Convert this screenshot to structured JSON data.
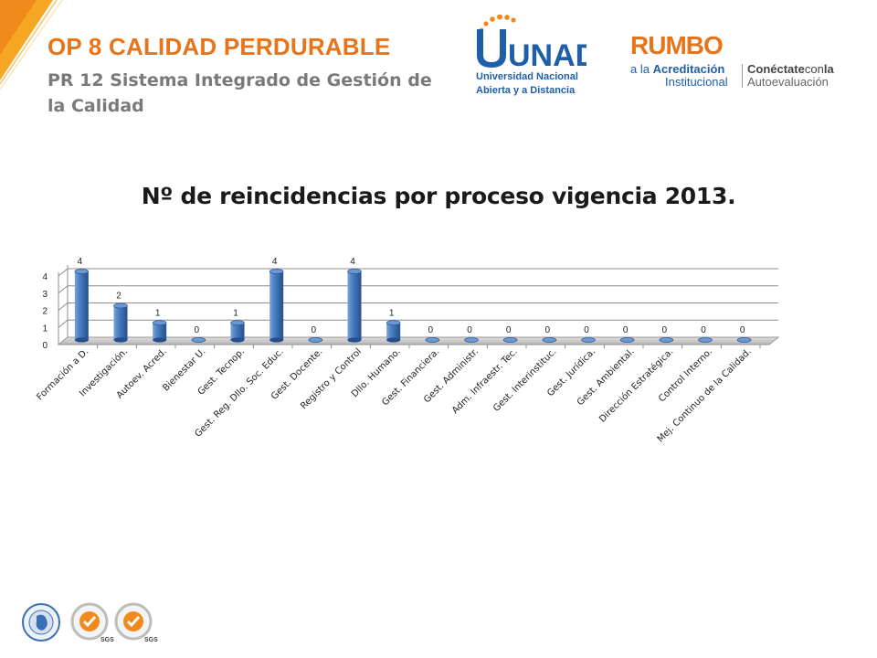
{
  "header": {
    "title": "OP 8 CALIDAD PERDURABLE",
    "subtitle": "PR 12 Sistema Integrado de Gestión de la Calidad"
  },
  "logos": {
    "unad": {
      "wordmark": "UNAD",
      "line1": "Universidad Nacional",
      "line2": "Abierta y a Distancia"
    },
    "rumbo": {
      "word": "RUMBO",
      "line1_pre": "a la ",
      "line1_bold": "Acreditación",
      "line2": "Institucional",
      "right1_bold": "Conéctate",
      "right1_mid": "con",
      "right1_end": "la",
      "right2": "Autoevaluación"
    },
    "footer": [
      "SGS",
      "SGS"
    ]
  },
  "colors": {
    "accent_orange": "#e8741a",
    "bar_blue": "#3b6fb6",
    "text_gray": "#7a7a7a"
  },
  "chart_data": {
    "type": "bar",
    "title": "Nº de reincidencias por proceso vigencia 2013.",
    "categories": [
      "Formación a D.",
      "Investigación.",
      "Autoev. Acred.",
      "Bienestar U.",
      "Gest. Tecnop.",
      "Gest. Reg. Dllo. Soc. Educ.",
      "Gest. Docente.",
      "Registro y Control",
      "Dllo. Humano.",
      "Gest. Financiera.",
      "Gest. Administr.",
      "Adm. Infraestr. Tec.",
      "Gest. Interinstituc.",
      "Gest. Jurídica.",
      "Gest. Ambiental.",
      "Dirección Estratégica.",
      "Control Interno.",
      "Mej. Continuo de la Calidad."
    ],
    "values": [
      4,
      2,
      1,
      0,
      1,
      4,
      0,
      4,
      1,
      0,
      0,
      0,
      0,
      0,
      0,
      0,
      0,
      0
    ],
    "data_labels": [
      "4",
      "2",
      "1",
      "0",
      "1",
      "4",
      "0",
      "4",
      "1",
      "0",
      "0",
      "0",
      "0",
      "0",
      "0",
      "0",
      "0",
      "0"
    ],
    "y_ticks": [
      "0",
      "1",
      "2",
      "3",
      "4"
    ],
    "ylim": [
      0,
      4
    ],
    "grid": true,
    "legend": "none"
  }
}
